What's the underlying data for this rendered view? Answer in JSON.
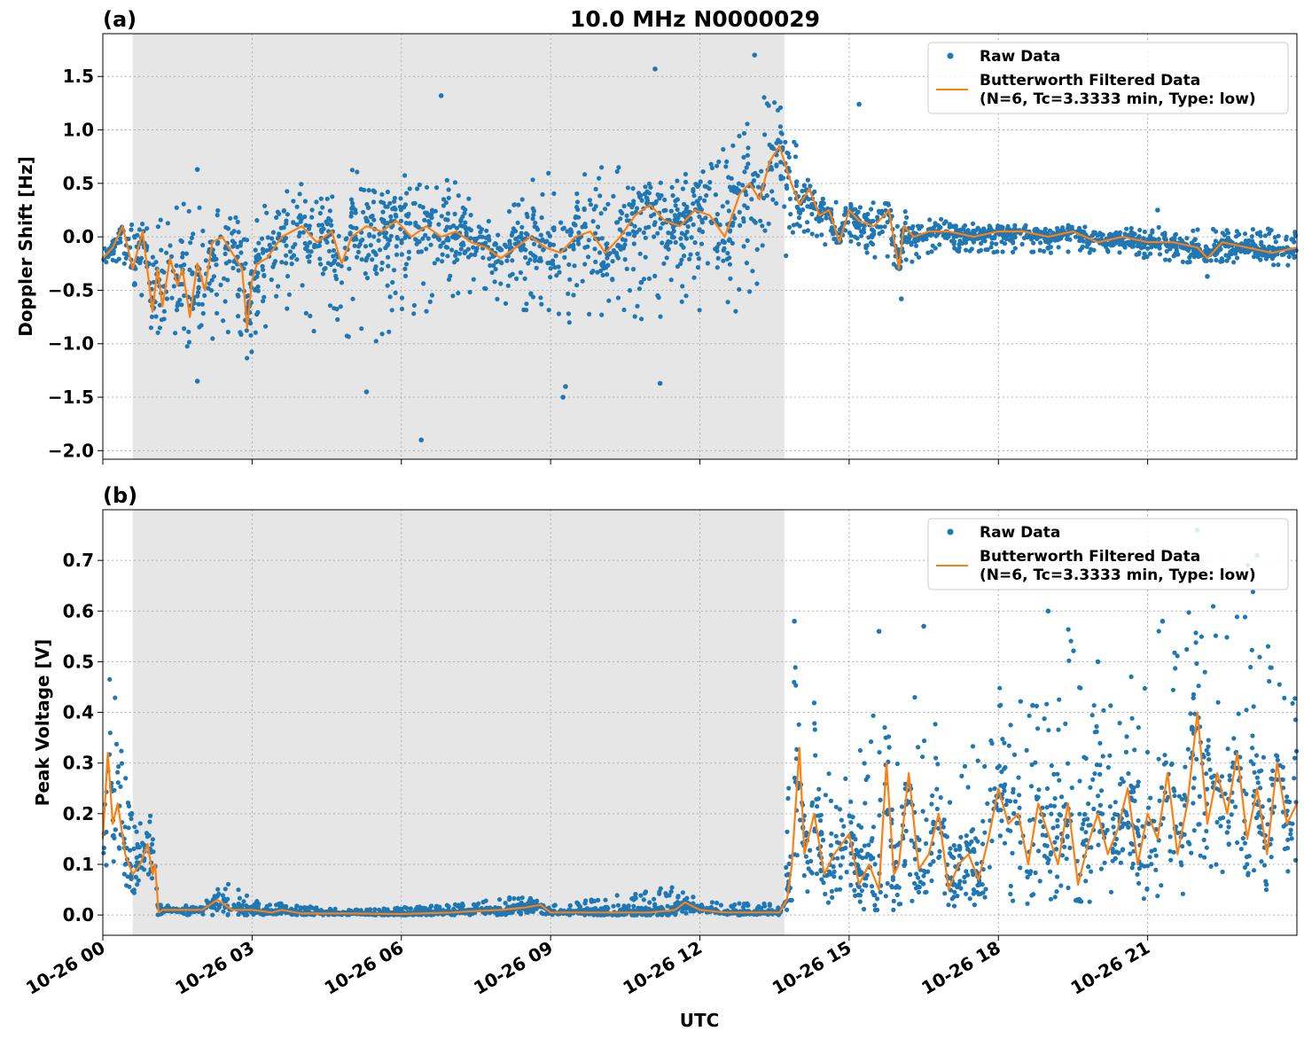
{
  "figure": {
    "title": "10.0 MHz N0000029",
    "xlabel": "UTC",
    "x_tick_labels": [
      "10-26 00",
      "10-26 03",
      "10-26 06",
      "10-26 09",
      "10-26 12",
      "10-26 15",
      "10-26 18",
      "10-26 21"
    ],
    "colors": {
      "raw": "#1f77b4",
      "filtered": "#ff7f0e",
      "night_shade": "#e6e6e6"
    }
  },
  "chart_data": [
    {
      "panel": "(a)",
      "type": "scatter",
      "ylabel": "Doppler Shift [Hz]",
      "x_unit": "hours since 10-26 00 UTC",
      "xlim": [
        0,
        24
      ],
      "ylim": [
        -2.08,
        1.9
      ],
      "y_ticks": [
        -2.0,
        -1.5,
        -1.0,
        -0.5,
        0.0,
        0.5,
        1.0,
        1.5
      ],
      "y_tick_labels": [
        "−2.0",
        "−1.5",
        "−1.0",
        "−0.5",
        "0.0",
        "0.5",
        "1.0",
        "1.5"
      ],
      "shaded_interval": [
        0.6,
        13.7
      ],
      "grid": true,
      "legend_position": "upper-right",
      "legend": [
        "Raw Data",
        "Butterworth Filtered Data",
        "(N=6, Tc=3.3333 min, Type: low)"
      ],
      "series": [
        {
          "name": "Raw Data",
          "style": "scatter",
          "envelope_hours": [
            0,
            0.5,
            1,
            1.5,
            2,
            2.5,
            3,
            3.5,
            4,
            4.5,
            5,
            5.5,
            6,
            6.5,
            7,
            7.5,
            8,
            8.5,
            9,
            9.5,
            10,
            10.5,
            11,
            11.5,
            12,
            12.5,
            13,
            13.5,
            13.8,
            14,
            14.5,
            15,
            16,
            16.5,
            17,
            18,
            19,
            20,
            21,
            22,
            23,
            24
          ],
          "envelope_low": [
            -0.25,
            -0.3,
            -0.9,
            -1.0,
            -1.1,
            -0.9,
            -1.2,
            -0.6,
            -0.9,
            -0.9,
            -1.0,
            -1.0,
            -0.8,
            -0.7,
            -0.6,
            -0.5,
            -0.6,
            -0.8,
            -0.9,
            -0.8,
            -0.8,
            -0.7,
            -0.9,
            -0.6,
            -0.7,
            -0.8,
            -0.6,
            -0.3,
            -0.2,
            0.0,
            -0.1,
            -0.1,
            -0.3,
            -0.2,
            -0.15,
            -0.15,
            -0.15,
            -0.15,
            -0.2,
            -0.25,
            -0.25,
            -0.3
          ],
          "envelope_high": [
            -0.1,
            0.15,
            0.1,
            0.3,
            0.35,
            0.2,
            0.2,
            0.4,
            0.5,
            0.6,
            0.7,
            0.6,
            0.6,
            0.5,
            0.55,
            0.4,
            0.3,
            0.55,
            0.6,
            0.6,
            0.7,
            0.7,
            0.6,
            0.55,
            0.7,
            1.0,
            1.2,
            1.4,
            1.5,
            0.6,
            0.4,
            0.35,
            0.3,
            0.2,
            0.15,
            0.12,
            0.12,
            0.1,
            0.1,
            0.08,
            0.08,
            0.07
          ],
          "outliers": [
            {
              "x": 6.4,
              "y": -1.9
            },
            {
              "x": 5.3,
              "y": -1.45
            },
            {
              "x": 9.25,
              "y": -1.5
            },
            {
              "x": 11.1,
              "y": 1.57
            },
            {
              "x": 6.8,
              "y": 1.32
            },
            {
              "x": 13.1,
              "y": 1.7
            },
            {
              "x": 15.2,
              "y": 1.24
            },
            {
              "x": 1.9,
              "y": -1.35
            },
            {
              "x": 1.9,
              "y": 0.63
            },
            {
              "x": 16.05,
              "y": -0.58
            },
            {
              "x": 21.2,
              "y": 0.25
            },
            {
              "x": 22.2,
              "y": -0.37
            },
            {
              "x": 9.3,
              "y": -1.4
            },
            {
              "x": 11.2,
              "y": -1.37
            }
          ]
        },
        {
          "name": "Butterworth Filtered Data",
          "style": "line",
          "x": [
            0,
            0.2,
            0.4,
            0.6,
            0.8,
            1.0,
            1.1,
            1.2,
            1.35,
            1.5,
            1.6,
            1.75,
            1.9,
            2.05,
            2.2,
            2.4,
            2.6,
            2.8,
            2.9,
            3.0,
            3.1,
            3.3,
            3.6,
            4.0,
            4.3,
            4.6,
            4.8,
            5.0,
            5.3,
            5.6,
            5.9,
            6.2,
            6.5,
            6.8,
            7.1,
            7.4,
            7.7,
            8.0,
            8.3,
            8.6,
            8.9,
            9.2,
            9.5,
            9.8,
            10.1,
            10.4,
            10.7,
            11.0,
            11.3,
            11.6,
            11.9,
            12.2,
            12.5,
            12.8,
            13.0,
            13.2,
            13.4,
            13.6,
            13.8,
            14.0,
            14.2,
            14.4,
            14.6,
            14.8,
            15.0,
            15.2,
            15.5,
            15.8,
            16.0,
            16.1,
            16.3,
            16.6,
            17.0,
            17.5,
            18.0,
            18.5,
            19.0,
            19.5,
            20.0,
            20.5,
            21.0,
            21.5,
            22.0,
            22.2,
            22.5,
            23.0,
            23.5,
            24.0
          ],
          "y": [
            -0.2,
            -0.1,
            0.1,
            -0.3,
            0.05,
            -0.7,
            -0.3,
            -0.65,
            -0.2,
            -0.45,
            -0.3,
            -0.75,
            -0.25,
            -0.5,
            -0.05,
            0.0,
            -0.15,
            -0.3,
            -0.85,
            -0.4,
            -0.25,
            -0.2,
            0.0,
            0.1,
            -0.05,
            0.05,
            -0.25,
            0.0,
            0.1,
            0.05,
            0.15,
            0.0,
            0.1,
            0.0,
            0.05,
            -0.05,
            -0.1,
            -0.2,
            -0.1,
            0.0,
            -0.1,
            -0.15,
            0.0,
            0.05,
            -0.15,
            0.0,
            0.2,
            0.3,
            0.15,
            0.1,
            0.25,
            0.2,
            0.0,
            0.4,
            0.5,
            0.35,
            0.7,
            0.85,
            0.55,
            0.3,
            0.45,
            0.2,
            0.25,
            -0.05,
            0.25,
            0.15,
            0.1,
            0.25,
            -0.3,
            0.1,
            0.0,
            0.05,
            0.05,
            0.0,
            0.05,
            0.05,
            0.0,
            0.05,
            -0.05,
            0.0,
            -0.05,
            -0.05,
            -0.1,
            -0.2,
            -0.05,
            -0.1,
            -0.15,
            -0.1
          ]
        }
      ]
    },
    {
      "panel": "(b)",
      "type": "scatter",
      "ylabel": "Peak Voltage [V]",
      "x_unit": "hours since 10-26 00 UTC",
      "xlim": [
        0,
        24
      ],
      "ylim": [
        -0.04,
        0.8
      ],
      "y_ticks": [
        0.0,
        0.1,
        0.2,
        0.3,
        0.4,
        0.5,
        0.6,
        0.7
      ],
      "y_tick_labels": [
        "0.0",
        "0.1",
        "0.2",
        "0.3",
        "0.4",
        "0.5",
        "0.6",
        "0.7"
      ],
      "shaded_interval": [
        0.6,
        13.7
      ],
      "grid": true,
      "legend_position": "upper-right",
      "legend": [
        "Raw Data",
        "Butterworth Filtered Data",
        "(N=6, Tc=3.3333 min, Type: low)"
      ],
      "series": [
        {
          "name": "Raw Data",
          "style": "scatter",
          "envelope_hours": [
            0,
            0.2,
            0.4,
            0.6,
            0.8,
            1.0,
            1.1,
            1.2,
            2.0,
            2.5,
            3.0,
            5.0,
            7.0,
            8.5,
            9.0,
            11.5,
            12.0,
            13.7,
            13.85,
            14.0,
            14.5,
            15.0,
            15.5,
            16.0,
            16.5,
            17.0,
            17.5,
            18.0,
            18.5,
            19.0,
            19.5,
            20.0,
            20.5,
            21.0,
            21.5,
            22.0,
            22.5,
            23.0,
            23.5,
            24.0
          ],
          "envelope_low": [
            0.05,
            0.06,
            0.06,
            0.04,
            0.05,
            0.05,
            0.0,
            0.0,
            0.0,
            0.0,
            0.0,
            0.0,
            0.0,
            0.0,
            0.0,
            0.0,
            0.0,
            0.0,
            0.03,
            0.03,
            0.02,
            0.01,
            0.01,
            0.01,
            0.02,
            0.02,
            0.01,
            0.01,
            0.02,
            0.03,
            0.03,
            0.02,
            0.03,
            0.03,
            0.04,
            0.04,
            0.05,
            0.05,
            0.05,
            0.06
          ],
          "envelope_high": [
            0.44,
            0.56,
            0.3,
            0.2,
            0.27,
            0.2,
            0.02,
            0.02,
            0.02,
            0.07,
            0.03,
            0.01,
            0.02,
            0.04,
            0.02,
            0.06,
            0.03,
            0.02,
            0.58,
            0.45,
            0.4,
            0.35,
            0.4,
            0.45,
            0.45,
            0.3,
            0.35,
            0.45,
            0.55,
            0.45,
            0.6,
            0.45,
            0.45,
            0.55,
            0.6,
            0.75,
            0.55,
            0.7,
            0.5,
            0.45
          ],
          "outliers": [
            {
              "x": 22.0,
              "y": 0.76
            },
            {
              "x": 23.2,
              "y": 0.71
            },
            {
              "x": 19.0,
              "y": 0.6
            },
            {
              "x": 13.9,
              "y": 0.58
            },
            {
              "x": 15.6,
              "y": 0.56
            },
            {
              "x": 16.5,
              "y": 0.57
            },
            {
              "x": 21.3,
              "y": 0.58
            },
            {
              "x": 20.0,
              "y": 0.5
            }
          ]
        },
        {
          "name": "Butterworth Filtered Data",
          "style": "line",
          "x": [
            0,
            0.1,
            0.2,
            0.3,
            0.45,
            0.6,
            0.75,
            0.9,
            1.0,
            1.05,
            1.12,
            1.2,
            2.0,
            2.3,
            2.6,
            3.0,
            3.4,
            3.6,
            4.0,
            5.0,
            6.0,
            7.0,
            7.5,
            8.0,
            8.5,
            8.8,
            9.0,
            10.0,
            11.0,
            11.5,
            11.7,
            12.0,
            12.5,
            13.0,
            13.6,
            13.75,
            13.85,
            14.0,
            14.1,
            14.3,
            14.5,
            14.7,
            15.0,
            15.2,
            15.4,
            15.6,
            15.75,
            15.9,
            16.0,
            16.2,
            16.4,
            16.6,
            16.8,
            17.0,
            17.2,
            17.4,
            17.6,
            17.8,
            18.0,
            18.2,
            18.4,
            18.6,
            18.8,
            19.0,
            19.2,
            19.4,
            19.6,
            19.8,
            20.0,
            20.2,
            20.4,
            20.6,
            20.8,
            21.0,
            21.2,
            21.4,
            21.6,
            21.8,
            22.0,
            22.2,
            22.4,
            22.6,
            22.8,
            23.0,
            23.2,
            23.4,
            23.6,
            23.8,
            24.0
          ],
          "y": [
            0.15,
            0.32,
            0.18,
            0.22,
            0.12,
            0.08,
            0.1,
            0.14,
            0.08,
            0.1,
            0.005,
            0.01,
            0.01,
            0.03,
            0.01,
            0.01,
            0.005,
            0.01,
            0.003,
            0.003,
            0.002,
            0.005,
            0.008,
            0.01,
            0.015,
            0.02,
            0.005,
            0.005,
            0.005,
            0.01,
            0.025,
            0.01,
            0.005,
            0.005,
            0.005,
            0.03,
            0.1,
            0.33,
            0.12,
            0.2,
            0.08,
            0.12,
            0.16,
            0.06,
            0.1,
            0.05,
            0.3,
            0.08,
            0.1,
            0.28,
            0.09,
            0.12,
            0.2,
            0.05,
            0.1,
            0.12,
            0.07,
            0.15,
            0.25,
            0.18,
            0.2,
            0.1,
            0.22,
            0.16,
            0.1,
            0.22,
            0.06,
            0.14,
            0.2,
            0.12,
            0.17,
            0.25,
            0.1,
            0.2,
            0.15,
            0.28,
            0.12,
            0.22,
            0.4,
            0.18,
            0.28,
            0.2,
            0.32,
            0.15,
            0.25,
            0.12,
            0.3,
            0.18,
            0.22
          ]
        }
      ]
    }
  ]
}
